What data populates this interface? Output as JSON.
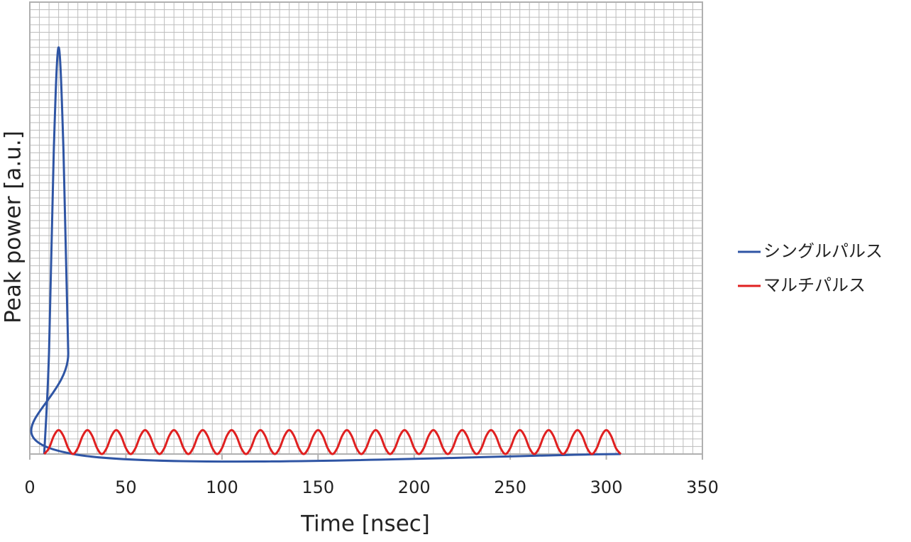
{
  "chart_data": {
    "type": "line",
    "x_label": "Time [nsec]",
    "y_label": "Peak power  [a.u.]",
    "xlim": [
      0,
      350
    ],
    "xticks": [
      0,
      50,
      100,
      150,
      200,
      250,
      300,
      350
    ],
    "ylim": [
      0,
      1
    ],
    "grid": true,
    "legend": "right",
    "series": [
      {
        "name": "シングルパルス",
        "color": "#2f55a4",
        "x": [
          7.5,
          10,
          12.5,
          15,
          17.5,
          20,
          22.5,
          307.5
        ],
        "values": [
          0,
          0.225,
          0.675,
          0.9,
          0.675,
          0.225,
          0,
          0
        ]
      },
      {
        "name": "マルチパルス",
        "color": "#e02020",
        "x": [
          7.5,
          10,
          12.5,
          15,
          17.5,
          20,
          22.5,
          25,
          27.5,
          30,
          32.5,
          35,
          37.5,
          40,
          42.5,
          45,
          47.5,
          50,
          52.5,
          55,
          57.5,
          60,
          62.5,
          65,
          67.5,
          70,
          72.5,
          75,
          77.5,
          80,
          82.5,
          85,
          87.5,
          90,
          92.5,
          95,
          97.5,
          100,
          102.5,
          105,
          107.5,
          110,
          112.5,
          115,
          117.5,
          120,
          122.5,
          125,
          127.5,
          130,
          132.5,
          135,
          137.5,
          140,
          142.5,
          145,
          147.5,
          150,
          152.5,
          155,
          157.5,
          160,
          162.5,
          165,
          167.5,
          170,
          172.5,
          175,
          177.5,
          180,
          182.5,
          185,
          187.5,
          190,
          192.5,
          195,
          197.5,
          200,
          202.5,
          205,
          207.5,
          210,
          212.5,
          215,
          217.5,
          220,
          222.5,
          225,
          227.5,
          230,
          232.5,
          235,
          237.5,
          240,
          242.5,
          245,
          247.5,
          250,
          252.5,
          255,
          257.5,
          260,
          262.5,
          265,
          267.5,
          270,
          272.5,
          275,
          277.5,
          280,
          282.5,
          285,
          287.5,
          290,
          292.5,
          295,
          297.5,
          300,
          302.5,
          305,
          307.5
        ],
        "values": [
          0,
          0.013,
          0.04,
          0.053,
          0.04,
          0.013,
          0,
          0.013,
          0.04,
          0.053,
          0.04,
          0.013,
          0,
          0.013,
          0.04,
          0.053,
          0.04,
          0.013,
          0,
          0.013,
          0.04,
          0.053,
          0.04,
          0.013,
          0,
          0.013,
          0.04,
          0.053,
          0.04,
          0.013,
          0,
          0.013,
          0.04,
          0.053,
          0.04,
          0.013,
          0,
          0.013,
          0.04,
          0.053,
          0.04,
          0.013,
          0,
          0.013,
          0.04,
          0.053,
          0.04,
          0.013,
          0,
          0.013,
          0.04,
          0.053,
          0.04,
          0.013,
          0,
          0.013,
          0.04,
          0.053,
          0.04,
          0.013,
          0,
          0.013,
          0.04,
          0.053,
          0.04,
          0.013,
          0,
          0.013,
          0.04,
          0.053,
          0.04,
          0.013,
          0,
          0.013,
          0.04,
          0.053,
          0.04,
          0.013,
          0,
          0.013,
          0.04,
          0.053,
          0.04,
          0.013,
          0,
          0.013,
          0.04,
          0.053,
          0.04,
          0.013,
          0,
          0.013,
          0.04,
          0.053,
          0.04,
          0.013,
          0,
          0.013,
          0.04,
          0.053,
          0.04,
          0.013,
          0,
          0.013,
          0.04,
          0.053,
          0.04,
          0.013,
          0,
          0.013,
          0.04,
          0.053,
          0.04,
          0.013,
          0,
          0.013,
          0.04,
          0.053,
          0.04,
          0.013,
          0
        ]
      }
    ]
  }
}
